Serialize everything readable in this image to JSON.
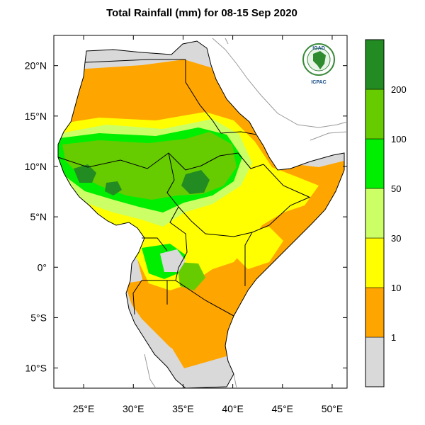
{
  "title": "Total Rainfall (mm) for 08-15 Sep 2020",
  "map": {
    "lon_range": [
      22,
      51.5
    ],
    "lat_range": [
      -12,
      23
    ],
    "x_ticks": [
      {
        "value": 25,
        "label": "25°E"
      },
      {
        "value": 30,
        "label": "30°E"
      },
      {
        "value": 35,
        "label": "35°E"
      },
      {
        "value": 40,
        "label": "40°E"
      },
      {
        "value": 45,
        "label": "45°E"
      },
      {
        "value": 50,
        "label": "50°E"
      }
    ],
    "y_ticks": [
      {
        "value": 20,
        "label": "20°N"
      },
      {
        "value": 15,
        "label": "15°N"
      },
      {
        "value": 10,
        "label": "10°N"
      },
      {
        "value": 5,
        "label": "5°N"
      },
      {
        "value": 0,
        "label": "0°"
      },
      {
        "value": -5,
        "label": "5°S"
      },
      {
        "value": -10,
        "label": "10°S"
      }
    ]
  },
  "logo": {
    "top_text": "IGAD",
    "bottom_text": "ICPAC"
  },
  "legend": {
    "bins": [
      {
        "color": "#d9d9d9",
        "range": "< 1"
      },
      {
        "color": "#ffa500",
        "range": "1-10"
      },
      {
        "color": "#ffff00",
        "range": "10-30"
      },
      {
        "color": "#ccff66",
        "range": "30-50"
      },
      {
        "color": "#00ee00",
        "range": "50-100"
      },
      {
        "color": "#66cc00",
        "range": "100-200"
      },
      {
        "color": "#228b22",
        "range": "> 200"
      }
    ],
    "labels": [
      "1",
      "10",
      "30",
      "50",
      "100",
      "200"
    ]
  },
  "colors": {
    "no_rain": "#d9d9d9",
    "light": "#ffa500",
    "moderate": "#ffff00",
    "fair": "#ccff66",
    "heavy": "#00ee00",
    "very_heavy": "#66cc00",
    "extreme": "#228b22",
    "border": "#000000",
    "context_line": "#9a9a9a"
  }
}
